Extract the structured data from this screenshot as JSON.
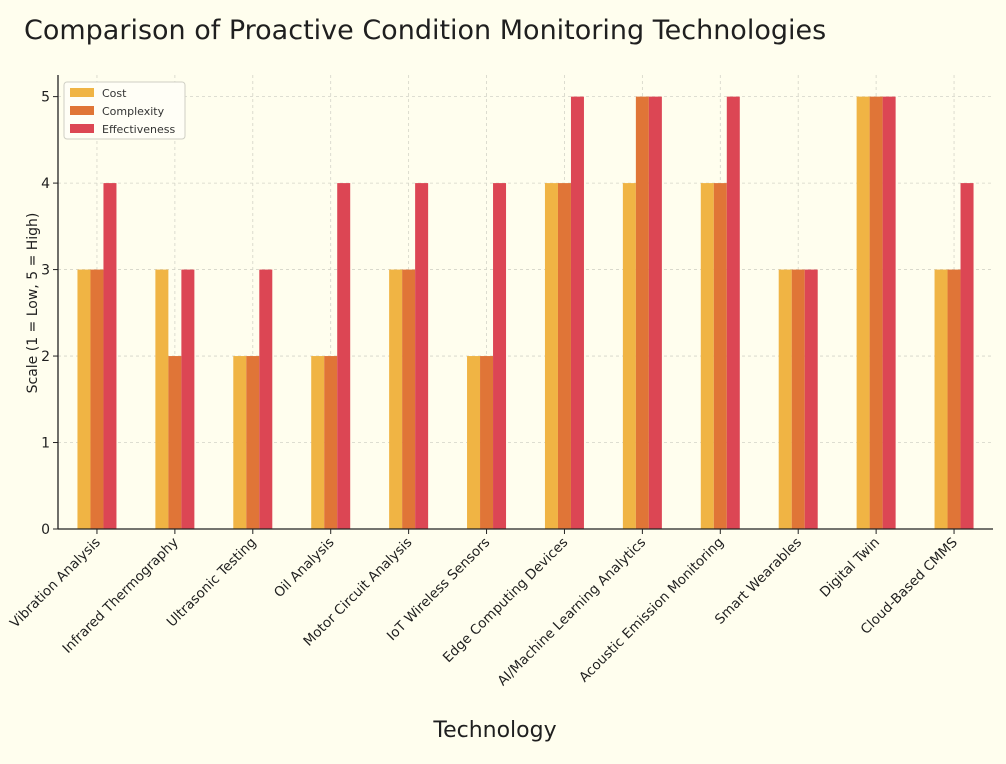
{
  "chart_data": {
    "type": "bar",
    "title": "Comparison of Proactive Condition Monitoring Technologies",
    "xlabel": "Technology",
    "ylabel": "Scale (1 = Low, 5 = High)",
    "ylim": [
      0,
      5.25
    ],
    "yticks": [
      0,
      1,
      2,
      3,
      4,
      5
    ],
    "grid": true,
    "legend_position": "top-left",
    "categories": [
      "Vibration Analysis",
      "Infrared Thermography",
      "Ultrasonic Testing",
      "Oil Analysis",
      "Motor Circuit Analysis",
      "IoT Wireless Sensors",
      "Edge Computing Devices",
      "AI/Machine Learning Analytics",
      "Acoustic Emission Monitoring",
      "Smart Wearables",
      "Digital Twin",
      "Cloud-Based CMMS"
    ],
    "series": [
      {
        "name": "Cost",
        "color": "#f0b444",
        "values": [
          3,
          3,
          2,
          2,
          3,
          2,
          4,
          4,
          4,
          3,
          5,
          3
        ]
      },
      {
        "name": "Complexity",
        "color": "#e07537",
        "values": [
          3,
          2,
          2,
          2,
          3,
          2,
          4,
          5,
          4,
          3,
          5,
          3
        ]
      },
      {
        "name": "Effectiveness",
        "color": "#dc4654",
        "values": [
          4,
          3,
          3,
          4,
          4,
          4,
          5,
          5,
          5,
          3,
          5,
          4
        ]
      }
    ]
  }
}
